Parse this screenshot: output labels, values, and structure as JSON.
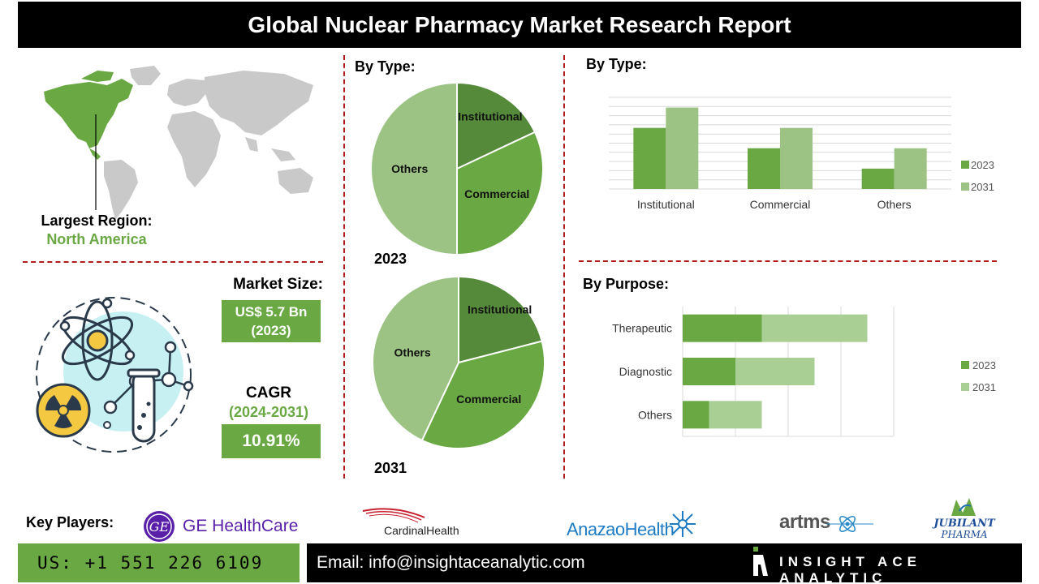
{
  "title": "Global Nuclear Pharmacy Market Research Report",
  "region": {
    "label": "Largest Region:",
    "value": "North America"
  },
  "market_size": {
    "label": "Market Size:",
    "line1": "US$ 5.7 Bn",
    "line2": "(2023)"
  },
  "cagr": {
    "label": "CAGR",
    "years": "(2024-2031)",
    "value": "10.91%"
  },
  "colors": {
    "accent_green": "#6aa844",
    "dark_green": "#558a3a",
    "mid_green": "#69a843",
    "light_green": "#9cc384",
    "lighter_green": "#a9cf94",
    "divider_red": "#b01c1c"
  },
  "sections": {
    "pie_title": "By Type:",
    "bar_title": "By Type:",
    "purpose_title": "By Purpose:"
  },
  "chart_data": [
    {
      "type": "pie",
      "label": "2023",
      "slices": [
        {
          "label": "Institutional",
          "value": 18
        },
        {
          "label": "Commercial",
          "value": 32
        },
        {
          "label": "Others",
          "value": 50
        }
      ]
    },
    {
      "type": "pie",
      "label": "2031",
      "slices": [
        {
          "label": "Institutional",
          "value": 21
        },
        {
          "label": "Commercial",
          "value": 36
        },
        {
          "label": "Others",
          "value": 43
        }
      ]
    },
    {
      "type": "bar",
      "categories": [
        "Institutional",
        "Commercial",
        "Others"
      ],
      "series": [
        {
          "name": "2023",
          "values": [
            3,
            2,
            1
          ]
        },
        {
          "name": "2031",
          "values": [
            4,
            3,
            2
          ]
        }
      ],
      "ylim": [
        0,
        4.5
      ],
      "gridlines": 10,
      "legend": "right"
    },
    {
      "type": "bar",
      "orientation": "horizontal",
      "stacked": true,
      "categories": [
        "Therapeutic",
        "Diagnostic",
        "Others"
      ],
      "series": [
        {
          "name": "2023",
          "values": [
            3,
            2,
            1
          ]
        },
        {
          "name": "2031",
          "values": [
            4,
            3,
            2
          ]
        }
      ],
      "xlim": [
        0,
        8
      ],
      "legend": "right"
    }
  ],
  "key_players": {
    "label": "Key Players:",
    "logos": [
      "GE HealthCare",
      "CardinalHealth",
      "AnazaoHealth",
      "artms",
      "JUBILANT",
      "PHARMA"
    ]
  },
  "footer": {
    "phone": "US: +1 551 226 6109",
    "email": "Email: info@insightaceanalytic.com",
    "brand": "INSIGHT ACE ANALYTIC"
  }
}
